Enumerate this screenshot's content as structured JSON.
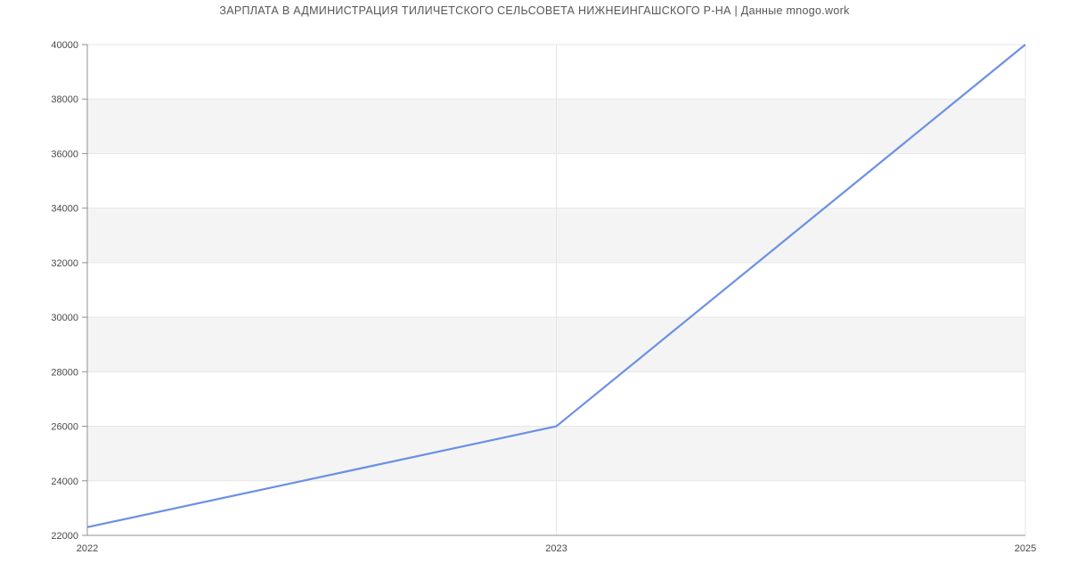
{
  "chart_data": {
    "type": "line",
    "title": "ЗАРПЛАТА В АДМИНИСТРАЦИЯ ТИЛИЧЕТСКОГО СЕЛЬСОВЕТА НИЖНЕИНГАШСКОГО Р-НА | Данные mnogo.work",
    "categories": [
      "2022",
      "2023",
      "2025"
    ],
    "values": [
      22300,
      26000,
      40000
    ],
    "xlabel": "",
    "ylabel": "",
    "ylim": [
      22000,
      40000
    ],
    "ytick_step": 2000,
    "ytick_labels": [
      "22000",
      "24000",
      "26000",
      "28000",
      "30000",
      "32000",
      "34000",
      "36000",
      "38000",
      "40000"
    ],
    "grid": true,
    "legend": "none",
    "styles": {
      "line_color": "#6b90e4",
      "band_fill": "#f4f4f4",
      "grid_color": "#e6e6e6",
      "axis_color": "#919191",
      "tick_label_color": "#494949",
      "title_color": "#565656",
      "background": "#ffffff"
    }
  }
}
